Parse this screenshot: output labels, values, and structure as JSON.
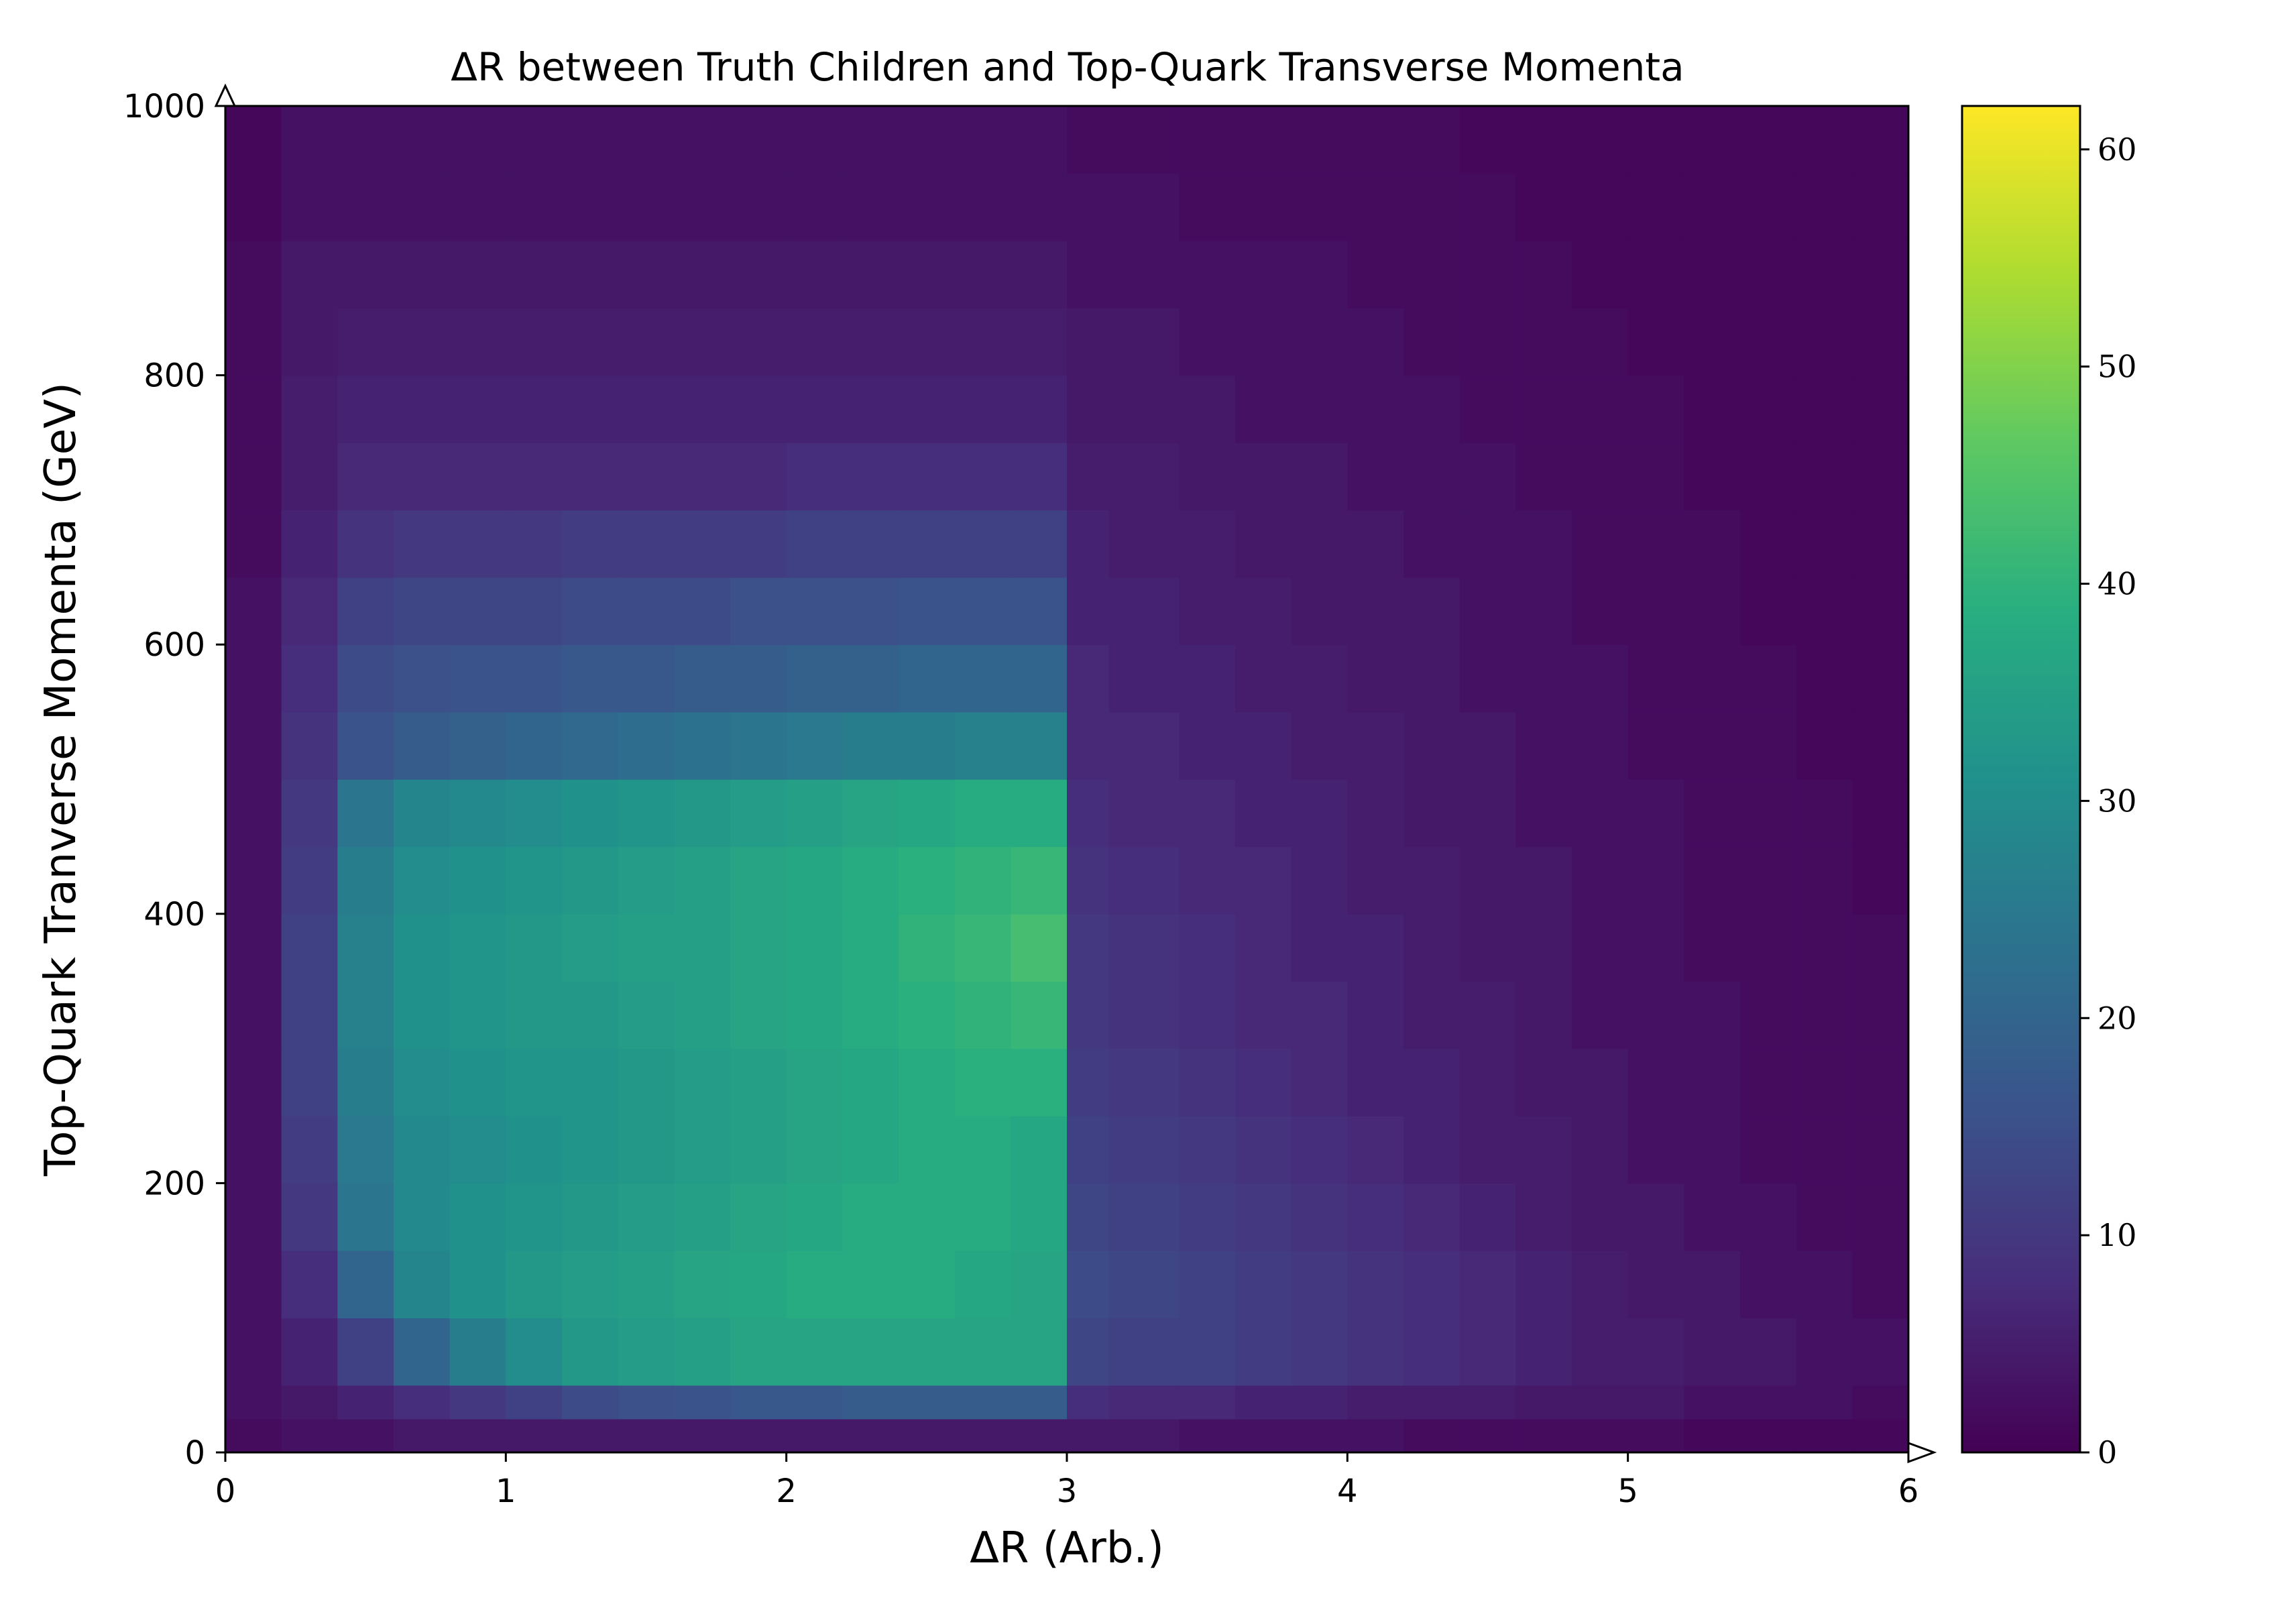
{
  "chart_data": {
    "type": "heatmap",
    "title": "ΔR between Truth Children and Top-Quark Transverse Momenta",
    "xlabel": "ΔR (Arb.)",
    "ylabel": "Top-Quark Tranverse Momenta (GeV)",
    "xlim": [
      0,
      6
    ],
    "ylim": [
      0,
      1000
    ],
    "x_ticks": [
      "0",
      "1",
      "2",
      "3",
      "4",
      "5",
      "6"
    ],
    "y_ticks": [
      "0",
      "200",
      "400",
      "600",
      "800",
      "1000"
    ],
    "colorbar": {
      "colormap": "viridis",
      "range": [
        0,
        62
      ],
      "ticks": [
        "0",
        "10",
        "20",
        "30",
        "40",
        "50",
        "60"
      ]
    },
    "grid": false,
    "x_bin_edges": [
      0.0,
      0.2,
      0.4,
      0.6,
      0.8,
      1.0,
      1.2,
      1.4,
      1.6,
      1.8,
      2.0,
      2.2,
      2.4,
      2.6,
      2.8,
      3.0,
      3.15,
      3.4,
      3.6,
      3.8,
      4.0,
      4.2,
      4.4,
      4.6,
      4.8,
      5.0,
      5.2,
      5.4,
      5.6,
      5.8,
      6.0
    ],
    "y_bin_edges": [
      0,
      25,
      50,
      100,
      150,
      200,
      250,
      300,
      350,
      400,
      450,
      500,
      550,
      600,
      650,
      700,
      750,
      800,
      850,
      900,
      950,
      1000
    ],
    "counts": [
      [
        2,
        3,
        3,
        4,
        4,
        4,
        4,
        4,
        4,
        4,
        4,
        4,
        4,
        4,
        4,
        4,
        4,
        3,
        3,
        3,
        3,
        2,
        2,
        2,
        2,
        2,
        1,
        1,
        1,
        1
      ],
      [
        3,
        4,
        6,
        8,
        10,
        12,
        14,
        15,
        16,
        17,
        17,
        18,
        18,
        18,
        18,
        8,
        7,
        7,
        6,
        6,
        5,
        5,
        5,
        4,
        4,
        4,
        3,
        3,
        3,
        2
      ],
      [
        3,
        6,
        12,
        20,
        26,
        30,
        33,
        34,
        35,
        36,
        36,
        36,
        36,
        36,
        36,
        13,
        12,
        12,
        11,
        10,
        9,
        8,
        7,
        6,
        5,
        5,
        4,
        4,
        3,
        3
      ],
      [
        3,
        8,
        20,
        28,
        31,
        33,
        34,
        35,
        36,
        37,
        38,
        38,
        38,
        37,
        36,
        14,
        13,
        12,
        11,
        10,
        9,
        8,
        7,
        6,
        5,
        4,
        4,
        3,
        3,
        2
      ],
      [
        3,
        10,
        24,
        29,
        31,
        32,
        33,
        34,
        35,
        36,
        37,
        38,
        38,
        38,
        37,
        13,
        12,
        11,
        10,
        9,
        8,
        7,
        6,
        5,
        4,
        4,
        3,
        3,
        2,
        2
      ],
      [
        3,
        11,
        25,
        29,
        30,
        31,
        32,
        33,
        34,
        35,
        36,
        37,
        38,
        38,
        37,
        12,
        11,
        10,
        9,
        8,
        7,
        6,
        5,
        5,
        4,
        3,
        3,
        2,
        2,
        2
      ],
      [
        3,
        12,
        26,
        30,
        31,
        32,
        32,
        33,
        34,
        35,
        36,
        37,
        38,
        39,
        39,
        11,
        10,
        9,
        8,
        7,
        6,
        6,
        5,
        4,
        4,
        3,
        3,
        2,
        2,
        2
      ],
      [
        3,
        12,
        27,
        31,
        32,
        33,
        33,
        34,
        35,
        36,
        37,
        38,
        39,
        40,
        41,
        10,
        9,
        8,
        7,
        7,
        6,
        5,
        5,
        4,
        3,
        3,
        3,
        2,
        2,
        2
      ],
      [
        3,
        12,
        27,
        31,
        32,
        33,
        34,
        35,
        35,
        36,
        37,
        38,
        40,
        41,
        43,
        10,
        9,
        8,
        7,
        6,
        6,
        5,
        4,
        4,
        3,
        3,
        2,
        2,
        2,
        2
      ],
      [
        3,
        11,
        26,
        30,
        31,
        32,
        33,
        34,
        35,
        36,
        37,
        38,
        39,
        40,
        41,
        9,
        8,
        7,
        7,
        6,
        5,
        5,
        4,
        4,
        3,
        3,
        2,
        2,
        2,
        1
      ],
      [
        3,
        10,
        24,
        28,
        29,
        30,
        31,
        32,
        33,
        34,
        35,
        36,
        37,
        38,
        38,
        8,
        7,
        7,
        6,
        6,
        5,
        4,
        4,
        3,
        3,
        3,
        2,
        2,
        2,
        1
      ],
      [
        3,
        9,
        16,
        18,
        19,
        20,
        21,
        22,
        23,
        24,
        25,
        26,
        26,
        27,
        27,
        7,
        7,
        6,
        6,
        5,
        5,
        4,
        4,
        3,
        3,
        2,
        2,
        2,
        1,
        1
      ],
      [
        3,
        8,
        14,
        15,
        16,
        16,
        17,
        17,
        18,
        18,
        19,
        19,
        20,
        20,
        20,
        7,
        6,
        6,
        5,
        5,
        4,
        4,
        3,
        3,
        3,
        2,
        2,
        2,
        1,
        1
      ],
      [
        3,
        7,
        12,
        13,
        13,
        13,
        14,
        14,
        14,
        15,
        15,
        15,
        16,
        16,
        16,
        6,
        6,
        5,
        5,
        4,
        4,
        4,
        3,
        3,
        2,
        2,
        2,
        1,
        1,
        1
      ],
      [
        2,
        6,
        9,
        10,
        10,
        10,
        11,
        11,
        11,
        11,
        12,
        12,
        12,
        12,
        12,
        6,
        5,
        5,
        4,
        4,
        4,
        3,
        3,
        3,
        2,
        2,
        2,
        1,
        1,
        1
      ],
      [
        2,
        5,
        7,
        7,
        7,
        7,
        7,
        7,
        7,
        7,
        8,
        8,
        8,
        8,
        8,
        5,
        5,
        4,
        4,
        4,
        3,
        3,
        3,
        2,
        2,
        2,
        1,
        1,
        1,
        1
      ],
      [
        2,
        5,
        6,
        6,
        6,
        6,
        6,
        6,
        6,
        6,
        6,
        6,
        6,
        6,
        6,
        4,
        4,
        4,
        3,
        3,
        3,
        3,
        2,
        2,
        2,
        2,
        1,
        1,
        1,
        1
      ],
      [
        2,
        4,
        5,
        5,
        5,
        5,
        5,
        5,
        5,
        5,
        5,
        5,
        5,
        5,
        5,
        4,
        4,
        3,
        3,
        3,
        3,
        2,
        2,
        2,
        2,
        1,
        1,
        1,
        1,
        1
      ],
      [
        2,
        4,
        4,
        4,
        4,
        4,
        4,
        4,
        4,
        4,
        4,
        4,
        4,
        4,
        4,
        3,
        3,
        3,
        3,
        3,
        2,
        2,
        2,
        2,
        1,
        1,
        1,
        1,
        1,
        1
      ],
      [
        1,
        3,
        3,
        3,
        3,
        3,
        3,
        3,
        3,
        3,
        3,
        3,
        3,
        3,
        3,
        3,
        3,
        2,
        2,
        2,
        2,
        2,
        2,
        1,
        1,
        1,
        1,
        1,
        1,
        1
      ],
      [
        1,
        3,
        3,
        3,
        3,
        3,
        3,
        3,
        3,
        3,
        3,
        3,
        3,
        3,
        3,
        2,
        2,
        2,
        2,
        2,
        2,
        2,
        1,
        1,
        1,
        1,
        1,
        1,
        1,
        1
      ]
    ]
  }
}
